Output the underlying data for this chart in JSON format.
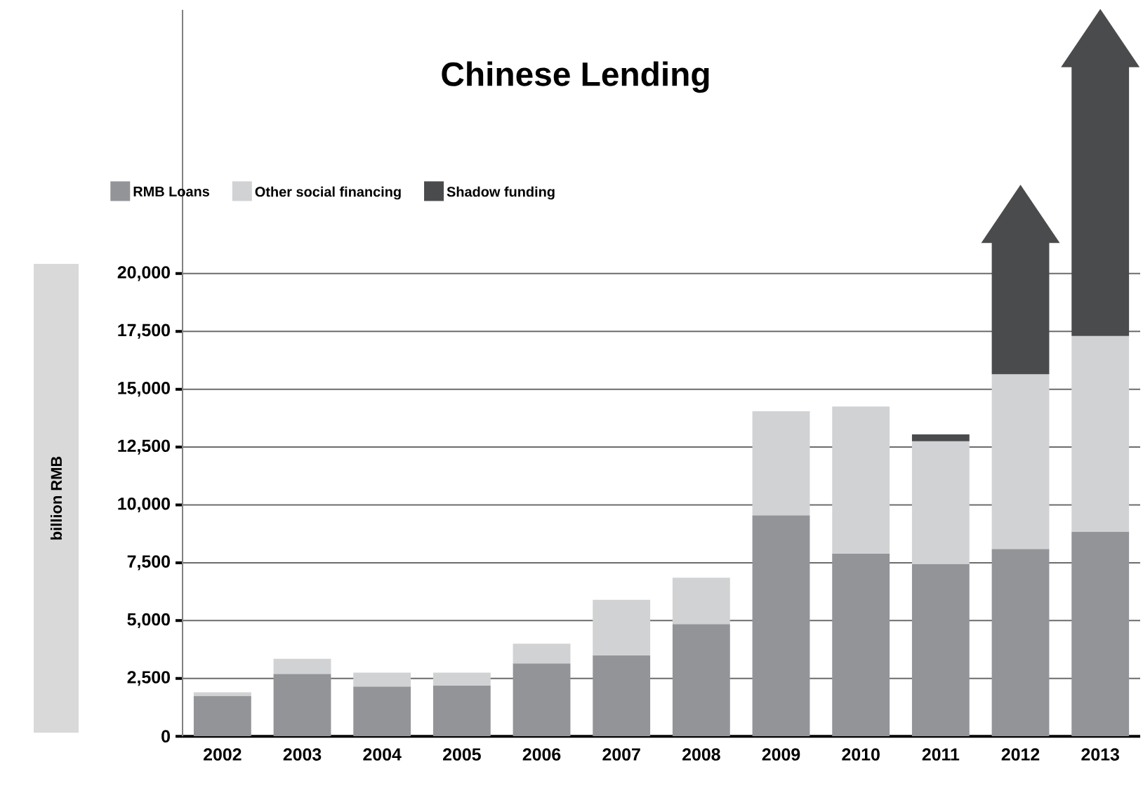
{
  "chart_data": {
    "type": "bar",
    "title": "Chinese Lending",
    "ylabel": "billion RMB",
    "stacked": true,
    "categories": [
      "2002",
      "2003",
      "2004",
      "2005",
      "2006",
      "2007",
      "2008",
      "2009",
      "2010",
      "2011",
      "2012",
      "2013"
    ],
    "series": [
      {
        "name": "RMB Loans",
        "color": "#939498",
        "values": [
          1750,
          2700,
          2150,
          2200,
          3150,
          3500,
          4850,
          9550,
          7900,
          7450,
          8100,
          8850
        ]
      },
      {
        "name": "Other social financing",
        "color": "#d1d2d4",
        "values": [
          150,
          650,
          600,
          550,
          850,
          2400,
          2000,
          4500,
          6350,
          5300,
          7550,
          8450
        ]
      },
      {
        "name": "Shadow funding",
        "color": "#4a4b4d",
        "values": [
          null,
          null,
          null,
          null,
          null,
          null,
          null,
          null,
          null,
          300,
          5700,
          11650
        ]
      }
    ],
    "ylim": [
      0,
      31400
    ],
    "yticks": [
      {
        "value": 0,
        "label": "0"
      },
      {
        "value": 2500,
        "label": "2,500"
      },
      {
        "value": 5000,
        "label": "5,000"
      },
      {
        "value": 7500,
        "label": "7,500"
      },
      {
        "value": 10000,
        "label": "10,000"
      },
      {
        "value": 12500,
        "label": "12,500"
      },
      {
        "value": 15000,
        "label": "15,000"
      },
      {
        "value": 17500,
        "label": "17,500"
      },
      {
        "value": 20000,
        "label": "20,000"
      }
    ],
    "grid": "y",
    "legend": "top left"
  }
}
